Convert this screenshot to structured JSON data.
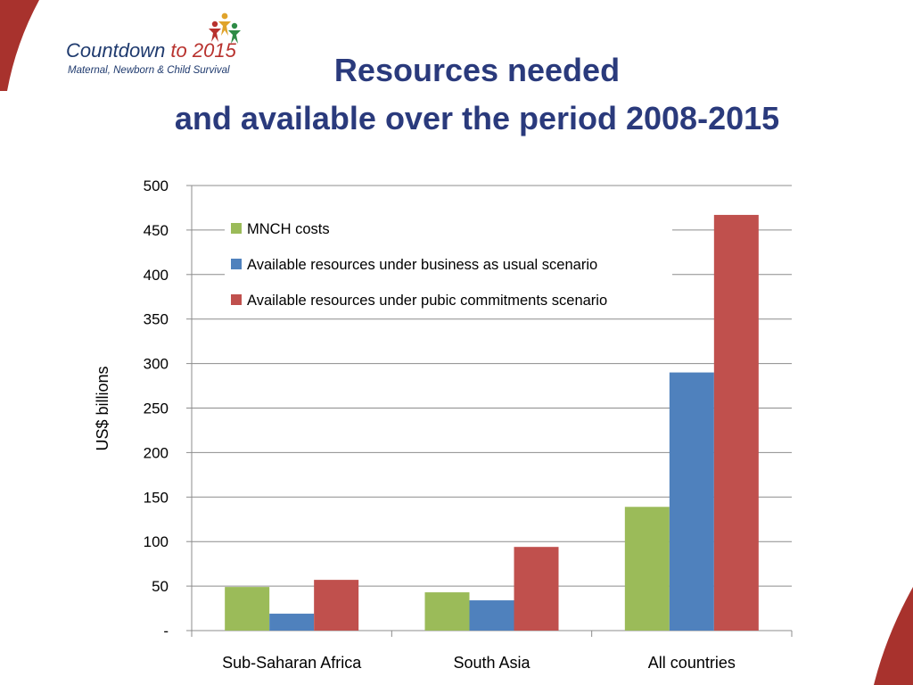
{
  "logo": {
    "name_part1": "Countdown",
    "name_part2": " to 2015",
    "tagline": "Maternal, Newborn & Child Survival"
  },
  "slide_title": {
    "line1": "Resources needed",
    "line2": "and available over the period 2008-2015"
  },
  "colors": {
    "title": "#2a3a7c",
    "mnch": "#9bbb59",
    "business_as_usual": "#4f81bd",
    "public_commitments": "#c0504d",
    "decor_red": "#a8322d"
  },
  "chart_data": {
    "type": "bar",
    "categories": [
      "Sub-Saharan Africa",
      "South Asia",
      "All countries"
    ],
    "series": [
      {
        "name": "MNCH costs",
        "values": [
          49,
          43,
          139
        ],
        "color": "#9bbb59"
      },
      {
        "name": "Available resources under business as usual scenario",
        "values": [
          19,
          34,
          290
        ],
        "color": "#4f81bd"
      },
      {
        "name": "Available resources under pubic commitments scenario",
        "values": [
          57,
          94,
          467
        ],
        "color": "#c0504d"
      }
    ],
    "ylabel": "US$ billions",
    "xlabel": "",
    "ylim": [
      0,
      500
    ],
    "yticks": [
      0,
      50,
      100,
      150,
      200,
      250,
      300,
      350,
      400,
      450,
      500
    ],
    "ytick_labels": [
      "-",
      "50",
      "100",
      "150",
      "200",
      "250",
      "300",
      "350",
      "400",
      "450",
      "500"
    ],
    "grid": true,
    "legend_position": "top-left"
  }
}
